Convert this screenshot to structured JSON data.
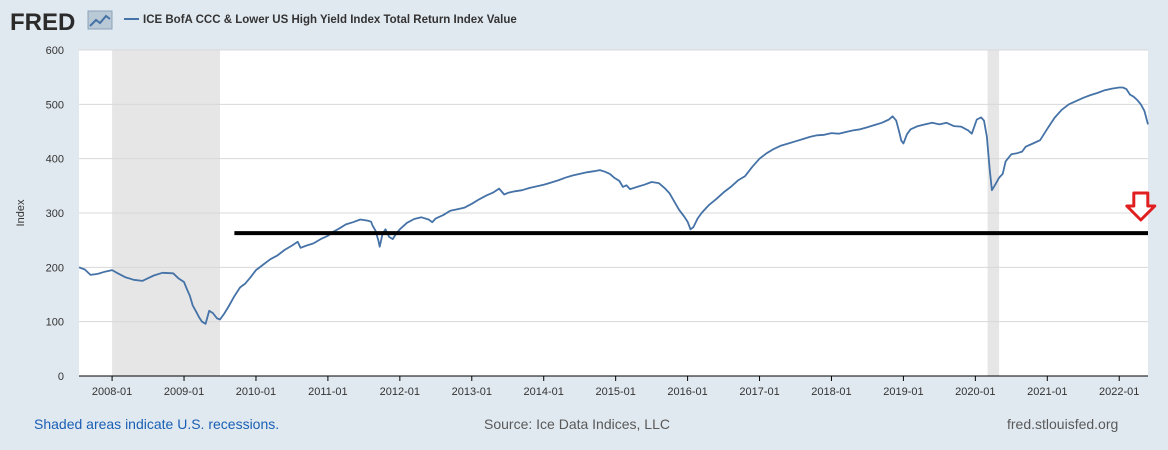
{
  "header": {
    "logo_text": "FRED",
    "series_title": "ICE BofA CCC & Lower US High Yield Index Total Return Index Value"
  },
  "footer": {
    "recession_note": "Shaded areas indicate U.S. recessions.",
    "source": "Source: Ice Data Indices, LLC",
    "site": "fred.stlouisfed.org"
  },
  "colors": {
    "line": "#4572a7",
    "recession": "#e6e6e6",
    "annotation_line": "#000000",
    "arrow": "#e02020",
    "background": "#e1e9f0",
    "plot_background": "#ffffff"
  },
  "chart_data": {
    "type": "line",
    "title": "ICE BofA CCC & Lower US High Yield Index Total Return Index Value",
    "ylabel": "Index",
    "ylim": [
      0,
      600
    ],
    "xlim": [
      2007.54,
      2022.4
    ],
    "y_ticks": [
      "0",
      "100",
      "200",
      "300",
      "400",
      "500",
      "600"
    ],
    "x_ticks": [
      {
        "label": "2008-01",
        "value": 2008.0
      },
      {
        "label": "2009-01",
        "value": 2009.0
      },
      {
        "label": "2010-01",
        "value": 2010.0
      },
      {
        "label": "2011-01",
        "value": 2011.0
      },
      {
        "label": "2012-01",
        "value": 2012.0
      },
      {
        "label": "2013-01",
        "value": 2013.0
      },
      {
        "label": "2014-01",
        "value": 2014.0
      },
      {
        "label": "2015-01",
        "value": 2015.0
      },
      {
        "label": "2016-01",
        "value": 2016.0
      },
      {
        "label": "2017-01",
        "value": 2017.0
      },
      {
        "label": "2018-01",
        "value": 2018.0
      },
      {
        "label": "2019-01",
        "value": 2019.0
      },
      {
        "label": "2020-01",
        "value": 2020.0
      },
      {
        "label": "2021-01",
        "value": 2021.0
      },
      {
        "label": "2022-01",
        "value": 2022.0
      }
    ],
    "recessions": [
      [
        2008.0,
        2009.5
      ],
      [
        2020.17,
        2020.33
      ]
    ],
    "horizontal_line": {
      "y": 263,
      "x_start": 2009.7,
      "x_end": 2022.4
    },
    "arrow_marker": {
      "x": 2022.3,
      "y": 300
    },
    "grid": "horizontal",
    "series": [
      {
        "name": "ICE BofA CCC & Lower US High Yield Index Total Return Index Value",
        "points": [
          [
            2007.54,
            200
          ],
          [
            2007.62,
            196
          ],
          [
            2007.7,
            186
          ],
          [
            2007.8,
            188
          ],
          [
            2007.9,
            192
          ],
          [
            2008.0,
            195
          ],
          [
            2008.08,
            189
          ],
          [
            2008.18,
            182
          ],
          [
            2008.3,
            177
          ],
          [
            2008.42,
            175
          ],
          [
            2008.5,
            180
          ],
          [
            2008.58,
            185
          ],
          [
            2008.7,
            190
          ],
          [
            2008.85,
            189
          ],
          [
            2008.92,
            180
          ],
          [
            2009.0,
            173
          ],
          [
            2009.04,
            160
          ],
          [
            2009.08,
            148
          ],
          [
            2009.12,
            130
          ],
          [
            2009.17,
            118
          ],
          [
            2009.21,
            108
          ],
          [
            2009.25,
            100
          ],
          [
            2009.3,
            96
          ],
          [
            2009.35,
            120
          ],
          [
            2009.4,
            116
          ],
          [
            2009.46,
            106
          ],
          [
            2009.5,
            104
          ],
          [
            2009.56,
            115
          ],
          [
            2009.62,
            128
          ],
          [
            2009.7,
            147
          ],
          [
            2009.78,
            163
          ],
          [
            2009.85,
            170
          ],
          [
            2009.92,
            181
          ],
          [
            2010.0,
            195
          ],
          [
            2010.1,
            205
          ],
          [
            2010.2,
            215
          ],
          [
            2010.3,
            222
          ],
          [
            2010.4,
            232
          ],
          [
            2010.5,
            240
          ],
          [
            2010.58,
            247
          ],
          [
            2010.62,
            236
          ],
          [
            2010.7,
            240
          ],
          [
            2010.8,
            244
          ],
          [
            2010.9,
            252
          ],
          [
            2011.0,
            258
          ],
          [
            2011.08,
            266
          ],
          [
            2011.15,
            271
          ],
          [
            2011.25,
            279
          ],
          [
            2011.35,
            283
          ],
          [
            2011.45,
            288
          ],
          [
            2011.55,
            286
          ],
          [
            2011.6,
            284
          ],
          [
            2011.62,
            277
          ],
          [
            2011.66,
            268
          ],
          [
            2011.7,
            250
          ],
          [
            2011.72,
            238
          ],
          [
            2011.76,
            262
          ],
          [
            2011.8,
            270
          ],
          [
            2011.85,
            256
          ],
          [
            2011.9,
            252
          ],
          [
            2011.95,
            262
          ],
          [
            2012.0,
            270
          ],
          [
            2012.1,
            282
          ],
          [
            2012.2,
            289
          ],
          [
            2012.3,
            292
          ],
          [
            2012.4,
            288
          ],
          [
            2012.45,
            283
          ],
          [
            2012.5,
            290
          ],
          [
            2012.6,
            296
          ],
          [
            2012.7,
            304
          ],
          [
            2012.8,
            307
          ],
          [
            2012.9,
            310
          ],
          [
            2013.0,
            317
          ],
          [
            2013.1,
            325
          ],
          [
            2013.2,
            332
          ],
          [
            2013.3,
            338
          ],
          [
            2013.38,
            345
          ],
          [
            2013.45,
            334
          ],
          [
            2013.5,
            337
          ],
          [
            2013.6,
            340
          ],
          [
            2013.7,
            342
          ],
          [
            2013.8,
            346
          ],
          [
            2013.9,
            349
          ],
          [
            2014.0,
            352
          ],
          [
            2014.1,
            356
          ],
          [
            2014.2,
            360
          ],
          [
            2014.3,
            365
          ],
          [
            2014.4,
            369
          ],
          [
            2014.5,
            372
          ],
          [
            2014.6,
            375
          ],
          [
            2014.7,
            377
          ],
          [
            2014.78,
            379
          ],
          [
            2014.85,
            376
          ],
          [
            2014.92,
            372
          ],
          [
            2014.98,
            365
          ],
          [
            2015.05,
            359
          ],
          [
            2015.1,
            348
          ],
          [
            2015.15,
            351
          ],
          [
            2015.2,
            344
          ],
          [
            2015.3,
            348
          ],
          [
            2015.4,
            352
          ],
          [
            2015.5,
            357
          ],
          [
            2015.6,
            355
          ],
          [
            2015.68,
            346
          ],
          [
            2015.75,
            336
          ],
          [
            2015.82,
            320
          ],
          [
            2015.88,
            306
          ],
          [
            2015.95,
            294
          ],
          [
            2016.0,
            284
          ],
          [
            2016.04,
            270
          ],
          [
            2016.08,
            274
          ],
          [
            2016.14,
            290
          ],
          [
            2016.2,
            301
          ],
          [
            2016.3,
            315
          ],
          [
            2016.4,
            326
          ],
          [
            2016.5,
            338
          ],
          [
            2016.6,
            348
          ],
          [
            2016.7,
            360
          ],
          [
            2016.8,
            368
          ],
          [
            2016.9,
            385
          ],
          [
            2017.0,
            400
          ],
          [
            2017.1,
            410
          ],
          [
            2017.2,
            418
          ],
          [
            2017.3,
            424
          ],
          [
            2017.4,
            428
          ],
          [
            2017.5,
            432
          ],
          [
            2017.6,
            436
          ],
          [
            2017.7,
            440
          ],
          [
            2017.8,
            443
          ],
          [
            2017.9,
            444
          ],
          [
            2018.0,
            447
          ],
          [
            2018.1,
            446
          ],
          [
            2018.2,
            449
          ],
          [
            2018.3,
            452
          ],
          [
            2018.4,
            454
          ],
          [
            2018.5,
            458
          ],
          [
            2018.6,
            462
          ],
          [
            2018.7,
            466
          ],
          [
            2018.8,
            472
          ],
          [
            2018.85,
            478
          ],
          [
            2018.9,
            470
          ],
          [
            2018.94,
            450
          ],
          [
            2018.97,
            433
          ],
          [
            2019.0,
            428
          ],
          [
            2019.05,
            445
          ],
          [
            2019.1,
            454
          ],
          [
            2019.2,
            460
          ],
          [
            2019.3,
            463
          ],
          [
            2019.4,
            466
          ],
          [
            2019.5,
            463
          ],
          [
            2019.6,
            466
          ],
          [
            2019.7,
            460
          ],
          [
            2019.8,
            459
          ],
          [
            2019.9,
            452
          ],
          [
            2019.95,
            446
          ],
          [
            2020.02,
            472
          ],
          [
            2020.08,
            476
          ],
          [
            2020.12,
            470
          ],
          [
            2020.16,
            440
          ],
          [
            2020.2,
            380
          ],
          [
            2020.23,
            342
          ],
          [
            2020.28,
            353
          ],
          [
            2020.33,
            365
          ],
          [
            2020.38,
            372
          ],
          [
            2020.42,
            395
          ],
          [
            2020.5,
            408
          ],
          [
            2020.58,
            410
          ],
          [
            2020.65,
            413
          ],
          [
            2020.7,
            422
          ],
          [
            2020.8,
            428
          ],
          [
            2020.9,
            434
          ],
          [
            2021.0,
            455
          ],
          [
            2021.1,
            475
          ],
          [
            2021.2,
            490
          ],
          [
            2021.3,
            500
          ],
          [
            2021.4,
            506
          ],
          [
            2021.5,
            512
          ],
          [
            2021.6,
            517
          ],
          [
            2021.7,
            521
          ],
          [
            2021.8,
            526
          ],
          [
            2021.9,
            529
          ],
          [
            2022.0,
            531
          ],
          [
            2022.05,
            531
          ],
          [
            2022.1,
            528
          ],
          [
            2022.15,
            518
          ],
          [
            2022.2,
            514
          ],
          [
            2022.25,
            508
          ],
          [
            2022.3,
            500
          ],
          [
            2022.35,
            488
          ],
          [
            2022.4,
            463
          ]
        ]
      }
    ]
  }
}
